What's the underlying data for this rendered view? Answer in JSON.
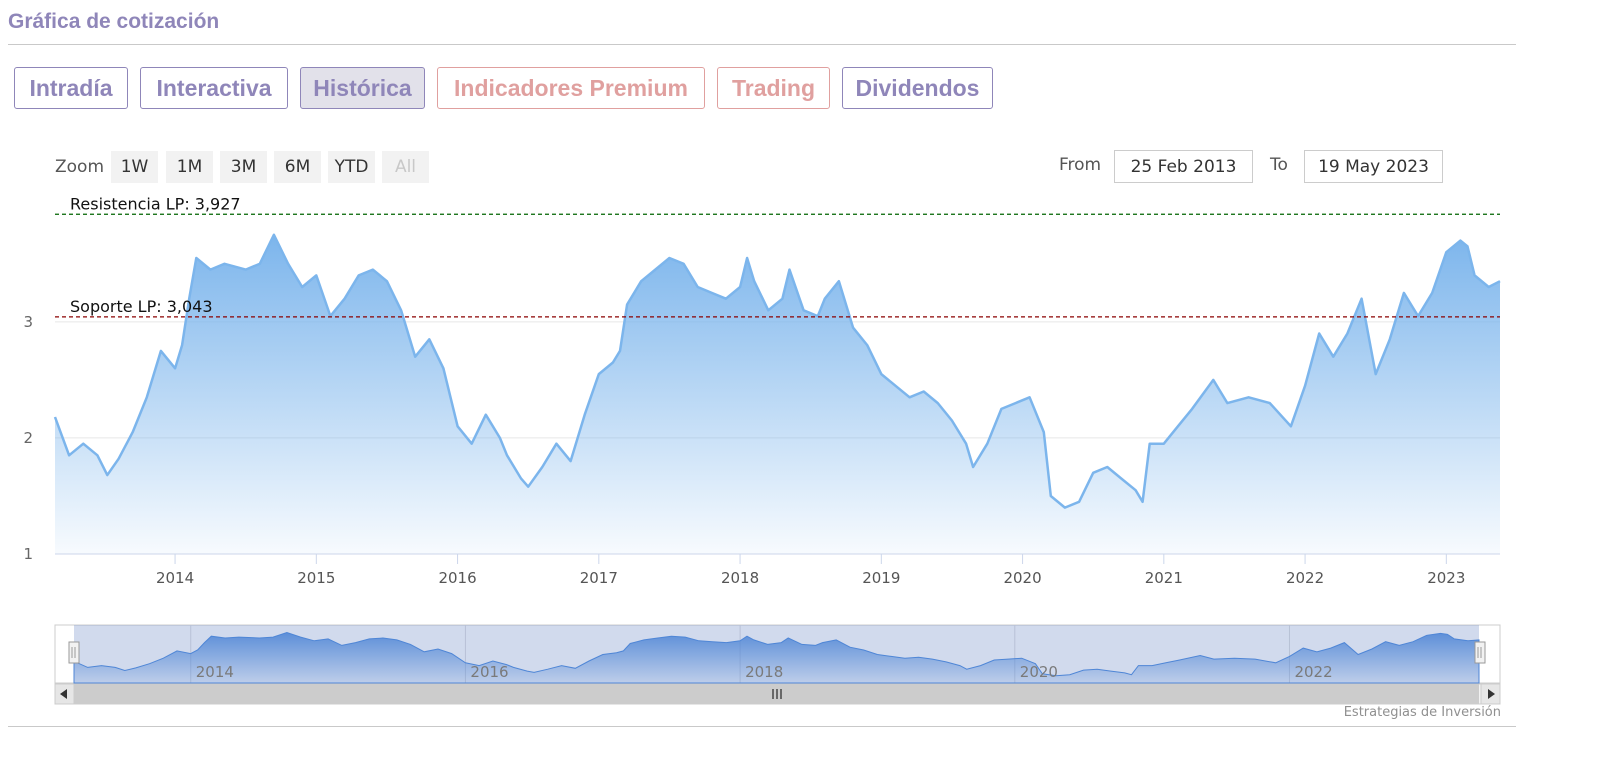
{
  "header": {
    "title": "Gráfica de cotización"
  },
  "tabs": [
    {
      "label": "Intradía"
    },
    {
      "label": "Interactiva"
    },
    {
      "label": "Histórica"
    },
    {
      "label": "Indicadores Premium"
    },
    {
      "label": "Trading"
    },
    {
      "label": "Dividendos"
    }
  ],
  "zoom": {
    "label": "Zoom",
    "buttons": [
      "1W",
      "1M",
      "3M",
      "6M",
      "YTD",
      "All"
    ]
  },
  "range": {
    "from_label": "From",
    "from_value": "25 Feb 2013",
    "to_label": "To",
    "to_value": "19 May 2023"
  },
  "credits": "Estrategias de Inversión",
  "colors": {
    "accent": "#8f86b9",
    "premium": "#e0a09f",
    "series_line": "#7cb5ec",
    "resistance": "#006400",
    "support": "#8b0000"
  },
  "chart_data": {
    "type": "area",
    "x_start": "25 Feb 2013",
    "x_end": "19 May 2023",
    "x_ticks": [
      "2014",
      "2015",
      "2016",
      "2017",
      "2018",
      "2019",
      "2020",
      "2021",
      "2022",
      "2023"
    ],
    "y_ticks": [
      "1",
      "2",
      "3"
    ],
    "ylim": [
      1,
      4.05
    ],
    "grid": true,
    "lines": [
      {
        "label": "Resistencia LP: 3,927",
        "value": 3.927,
        "style": "dashed"
      },
      {
        "label": "Soporte LP: 3,043",
        "value": 3.043,
        "style": "dashed"
      }
    ],
    "series": [
      {
        "points": [
          [
            2013.15,
            2.18
          ],
          [
            2013.25,
            1.85
          ],
          [
            2013.35,
            1.95
          ],
          [
            2013.45,
            1.85
          ],
          [
            2013.52,
            1.68
          ],
          [
            2013.6,
            1.82
          ],
          [
            2013.7,
            2.05
          ],
          [
            2013.8,
            2.35
          ],
          [
            2013.9,
            2.75
          ],
          [
            2014.0,
            2.6
          ],
          [
            2014.05,
            2.8
          ],
          [
            2014.1,
            3.2
          ],
          [
            2014.15,
            3.55
          ],
          [
            2014.25,
            3.45
          ],
          [
            2014.35,
            3.5
          ],
          [
            2014.5,
            3.45
          ],
          [
            2014.6,
            3.5
          ],
          [
            2014.7,
            3.75
          ],
          [
            2014.8,
            3.5
          ],
          [
            2014.9,
            3.3
          ],
          [
            2015.0,
            3.4
          ],
          [
            2015.1,
            3.05
          ],
          [
            2015.2,
            3.2
          ],
          [
            2015.3,
            3.4
          ],
          [
            2015.4,
            3.45
          ],
          [
            2015.5,
            3.35
          ],
          [
            2015.6,
            3.1
          ],
          [
            2015.7,
            2.7
          ],
          [
            2015.8,
            2.85
          ],
          [
            2015.9,
            2.6
          ],
          [
            2016.0,
            2.1
          ],
          [
            2016.1,
            1.95
          ],
          [
            2016.2,
            2.2
          ],
          [
            2016.3,
            2.0
          ],
          [
            2016.35,
            1.85
          ],
          [
            2016.45,
            1.65
          ],
          [
            2016.5,
            1.58
          ],
          [
            2016.6,
            1.75
          ],
          [
            2016.7,
            1.95
          ],
          [
            2016.8,
            1.8
          ],
          [
            2016.9,
            2.2
          ],
          [
            2017.0,
            2.55
          ],
          [
            2017.1,
            2.65
          ],
          [
            2017.15,
            2.75
          ],
          [
            2017.2,
            3.15
          ],
          [
            2017.3,
            3.35
          ],
          [
            2017.4,
            3.45
          ],
          [
            2017.5,
            3.55
          ],
          [
            2017.6,
            3.5
          ],
          [
            2017.7,
            3.3
          ],
          [
            2017.8,
            3.25
          ],
          [
            2017.9,
            3.2
          ],
          [
            2018.0,
            3.3
          ],
          [
            2018.05,
            3.55
          ],
          [
            2018.1,
            3.35
          ],
          [
            2018.2,
            3.1
          ],
          [
            2018.3,
            3.2
          ],
          [
            2018.35,
            3.45
          ],
          [
            2018.45,
            3.1
          ],
          [
            2018.55,
            3.05
          ],
          [
            2018.6,
            3.2
          ],
          [
            2018.7,
            3.35
          ],
          [
            2018.8,
            2.95
          ],
          [
            2018.9,
            2.8
          ],
          [
            2019.0,
            2.55
          ],
          [
            2019.1,
            2.45
          ],
          [
            2019.2,
            2.35
          ],
          [
            2019.3,
            2.4
          ],
          [
            2019.4,
            2.3
          ],
          [
            2019.5,
            2.15
          ],
          [
            2019.6,
            1.95
          ],
          [
            2019.65,
            1.75
          ],
          [
            2019.75,
            1.95
          ],
          [
            2019.85,
            2.25
          ],
          [
            2019.95,
            2.3
          ],
          [
            2020.05,
            2.35
          ],
          [
            2020.15,
            2.05
          ],
          [
            2020.2,
            1.5
          ],
          [
            2020.3,
            1.4
          ],
          [
            2020.4,
            1.45
          ],
          [
            2020.5,
            1.7
          ],
          [
            2020.6,
            1.75
          ],
          [
            2020.7,
            1.65
          ],
          [
            2020.8,
            1.55
          ],
          [
            2020.85,
            1.45
          ],
          [
            2020.9,
            1.95
          ],
          [
            2021.0,
            1.95
          ],
          [
            2021.1,
            2.1
          ],
          [
            2021.2,
            2.25
          ],
          [
            2021.35,
            2.5
          ],
          [
            2021.45,
            2.3
          ],
          [
            2021.6,
            2.35
          ],
          [
            2021.75,
            2.3
          ],
          [
            2021.9,
            2.1
          ],
          [
            2022.0,
            2.45
          ],
          [
            2022.1,
            2.9
          ],
          [
            2022.2,
            2.7
          ],
          [
            2022.3,
            2.9
          ],
          [
            2022.4,
            3.2
          ],
          [
            2022.5,
            2.55
          ],
          [
            2022.6,
            2.85
          ],
          [
            2022.7,
            3.25
          ],
          [
            2022.8,
            3.05
          ],
          [
            2022.9,
            3.25
          ],
          [
            2023.0,
            3.6
          ],
          [
            2023.1,
            3.7
          ],
          [
            2023.15,
            3.65
          ],
          [
            2023.2,
            3.4
          ],
          [
            2023.3,
            3.3
          ],
          [
            2023.38,
            3.35
          ]
        ]
      }
    ],
    "navigator": {
      "x_ticks": [
        "2014",
        "2016",
        "2018",
        "2020",
        "2022"
      ]
    }
  }
}
